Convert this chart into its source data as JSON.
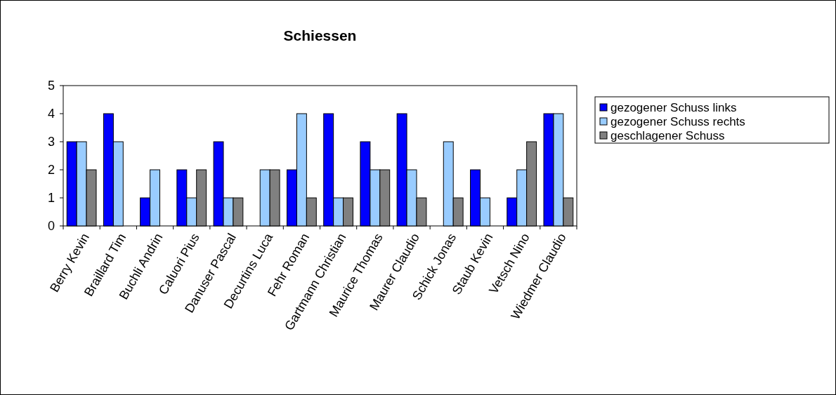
{
  "chart_data": {
    "type": "bar",
    "title": "Schiessen",
    "categories": [
      "Berry Kevin",
      "Braillard Tim",
      "Buchli Andrin",
      "Caluori Pius",
      "Danuser Pascal",
      "Decurtins Luca",
      "Fehr Roman",
      "Gartmann Christian",
      "Maurice Thomas",
      "Maurer Claudio",
      "Schick Jonas",
      "Staub Kevin",
      "Vetsch Nino",
      "Wiedmer Claudio"
    ],
    "series": [
      {
        "name": "gezogener Schuss links",
        "color": "#0000ff",
        "values": [
          3,
          4,
          1,
          2,
          3,
          0,
          2,
          4,
          3,
          4,
          0,
          2,
          1,
          4
        ]
      },
      {
        "name": "gezogener Schuss rechts",
        "color": "#99ccff",
        "values": [
          3,
          3,
          2,
          1,
          1,
          2,
          4,
          1,
          2,
          2,
          3,
          1,
          2,
          4
        ]
      },
      {
        "name": "geschlagener Schuss",
        "color": "#808080",
        "values": [
          2,
          0,
          0,
          2,
          1,
          2,
          1,
          1,
          2,
          1,
          1,
          0,
          3,
          1
        ]
      }
    ],
    "ylim": [
      0,
      5
    ],
    "yticks": [
      0,
      1,
      2,
      3,
      4,
      5
    ],
    "grid": false,
    "legend": "right"
  }
}
